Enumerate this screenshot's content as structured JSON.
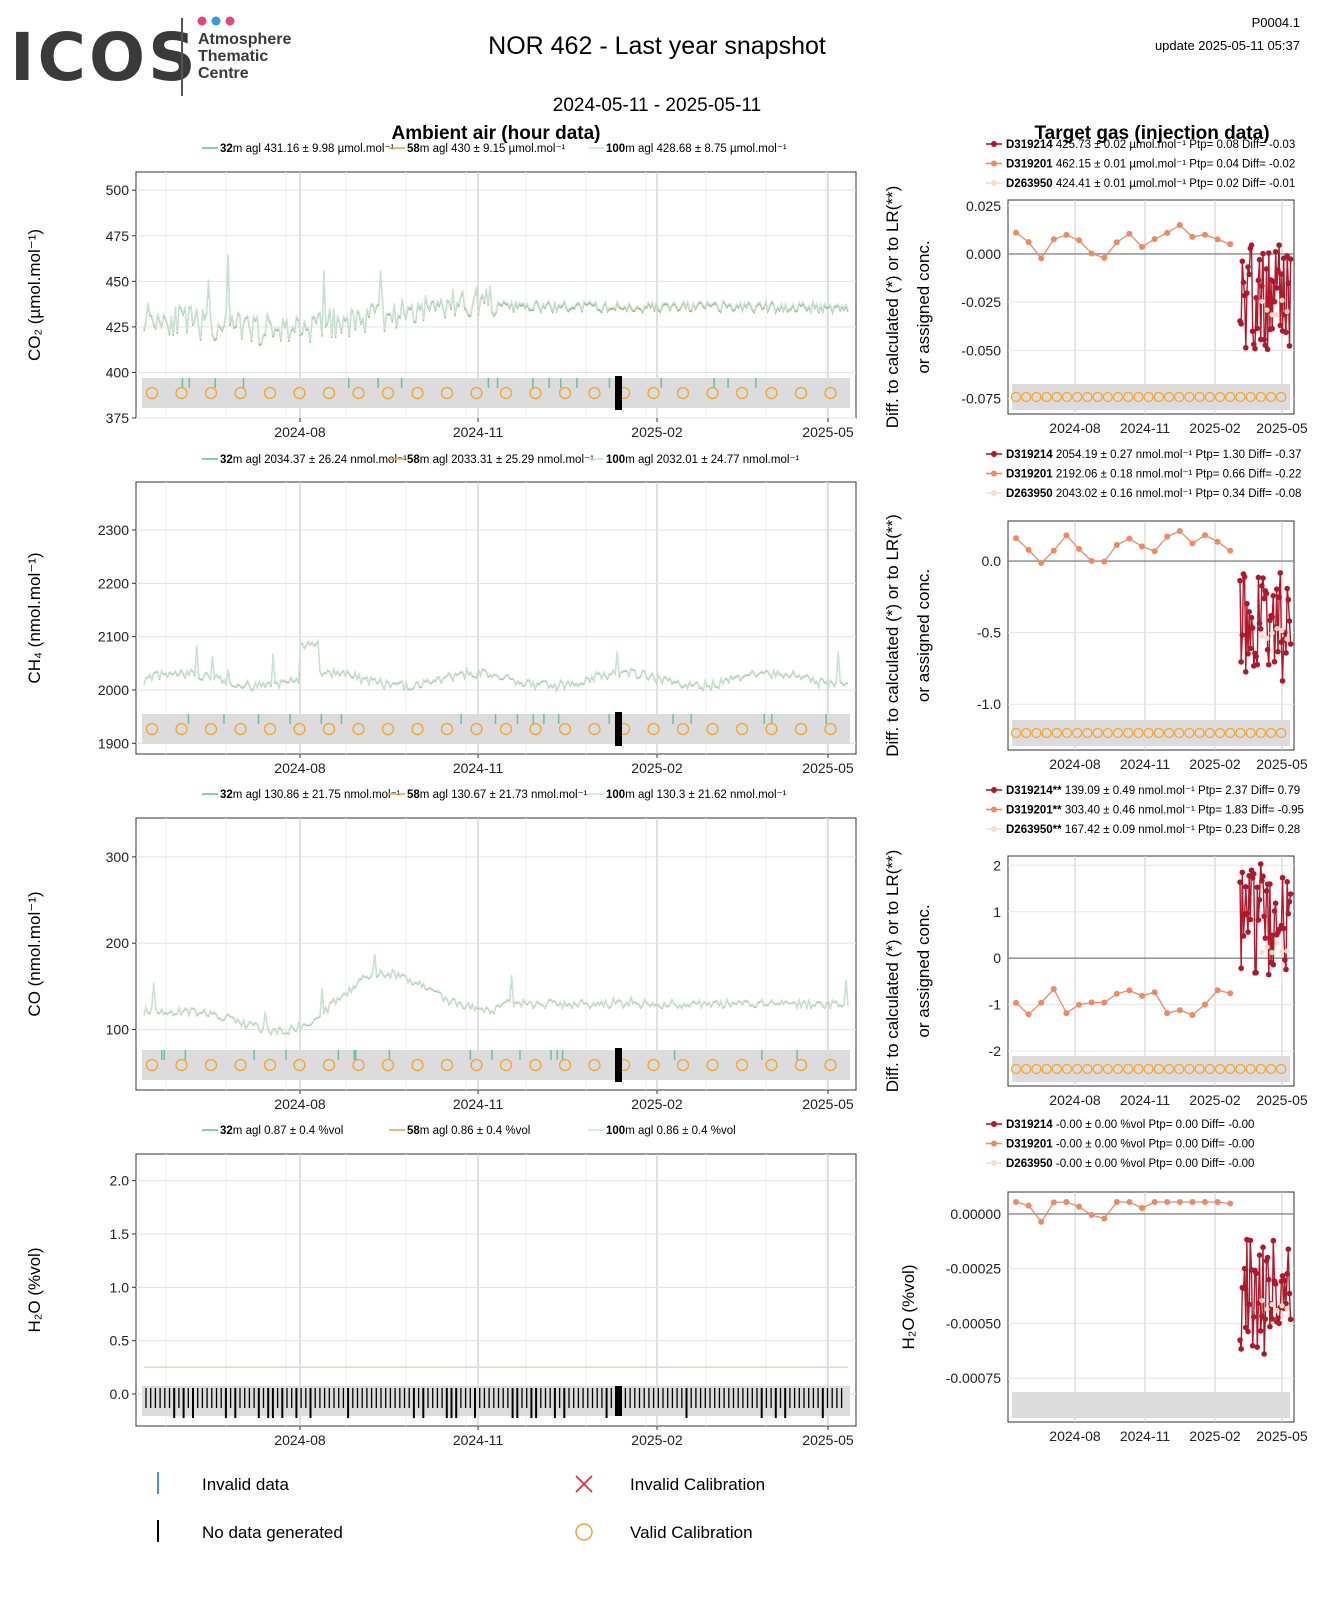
{
  "header": {
    "logo_main": "ICOS",
    "logo_sub": [
      "Atmosphere",
      "Thematic",
      "Centre"
    ],
    "title": "NOR 462 - Last year snapshot",
    "date_range": "2024-05-11 - 2025-05-11",
    "code": "P0004.1",
    "update": "update  2025-05-11 05:37"
  },
  "sections": {
    "left_title": "Ambient air (hour data)",
    "right_title": "Target gas (injection data)",
    "right_ylabel_line1": "Diff. to calculated (*) or to LR(**)",
    "right_ylabel_line2": "or assigned conc."
  },
  "colors": {
    "h32": "#66c2a5",
    "h58": "#e6ab4a",
    "h100": "#c5e8dd",
    "t1": "#b2182b",
    "t2": "#ef8a62",
    "t3": "#fddbc7",
    "valid_cal": "#f5a623",
    "invalid_data": "#4a90d9",
    "panel_bg": "#dcdcdc"
  },
  "legend_bottom": {
    "invalid_data": "Invalid data",
    "no_data": "No data generated",
    "invalid_cal": "Invalid Calibration",
    "valid_cal": "Valid Calibration"
  },
  "chart_data": [
    {
      "type": "line",
      "gas": "CO2",
      "ylabel": "CO₂ (µmol.mol⁻¹)",
      "yticks": [
        375,
        400,
        425,
        450,
        475,
        500
      ],
      "ylim": [
        375,
        510
      ],
      "xticks": [
        "2024-08",
        "2024-11",
        "2025-02",
        "2025-05"
      ],
      "legend": [
        {
          "height": "32",
          "text": "m agl 431.16 ± 9.98 µmol.mol⁻¹"
        },
        {
          "height": "58",
          "text": "m agl 430 ± 9.15 µmol.mol⁻¹"
        },
        {
          "height": "100",
          "text": "m agl 428.68 ± 8.75 µmol.mol⁻¹"
        }
      ],
      "target": {
        "yticks": [
          "0.025",
          "0.000",
          "-0.025",
          "-0.050",
          "-0.075"
        ],
        "ytick_values": [
          0.025,
          0,
          -0.025,
          -0.05,
          -0.075
        ],
        "ylim": [
          -0.083,
          0.028
        ],
        "xticks": [
          "2024-08",
          "2024-11",
          "2025-02",
          "2025-05"
        ],
        "legend": [
          {
            "id": "D319214",
            "text": " 425.73 ± 0.02 µmol.mol⁻¹ Ptp= 0.08 Diff= -0.03"
          },
          {
            "id": "D319201",
            "text": " 462.15 ± 0.01 µmol.mol⁻¹ Ptp= 0.04 Diff= -0.02"
          },
          {
            "id": "D263950",
            "text": " 424.41 ± 0.01 µmol.mol⁻¹ Ptp= 0.02 Diff= -0.01"
          }
        ]
      }
    },
    {
      "type": "line",
      "gas": "CH4",
      "ylabel": "CH₄ (nmol.mol⁻¹)",
      "yticks": [
        1900,
        2000,
        2100,
        2200,
        2300
      ],
      "ylim": [
        1880,
        2390
      ],
      "xticks": [
        "2024-08",
        "2024-11",
        "2025-02",
        "2025-05"
      ],
      "legend": [
        {
          "height": "32",
          "text": "m agl 2034.37 ± 26.24 nmol.mol⁻¹"
        },
        {
          "height": "58",
          "text": "m agl 2033.31 ± 25.29 nmol.mol⁻¹"
        },
        {
          "height": "100",
          "text": "m agl 2032.01 ± 24.77 nmol.mol⁻¹"
        }
      ],
      "target": {
        "yticks": [
          "0.0",
          "-0.5",
          "-1.0"
        ],
        "ytick_values": [
          0,
          -0.5,
          -1.0
        ],
        "ylim": [
          -1.32,
          0.28
        ],
        "xticks": [
          "2024-08",
          "2024-11",
          "2025-02",
          "2025-05"
        ],
        "legend": [
          {
            "id": "D319214",
            "text": " 2054.19 ± 0.27 nmol.mol⁻¹ Ptp= 1.30 Diff= -0.37"
          },
          {
            "id": "D319201",
            "text": " 2192.06 ± 0.18 nmol.mol⁻¹ Ptp= 0.66 Diff= -0.22"
          },
          {
            "id": "D263950",
            "text": " 2043.02 ± 0.16 nmol.mol⁻¹ Ptp= 0.34 Diff= -0.08"
          }
        ]
      }
    },
    {
      "type": "line",
      "gas": "CO",
      "ylabel": "CO (nmol.mol⁻¹)",
      "yticks": [
        100,
        200,
        300
      ],
      "ylim": [
        30,
        345
      ],
      "xticks": [
        "2024-08",
        "2024-11",
        "2025-02",
        "2025-05"
      ],
      "legend": [
        {
          "height": "32",
          "text": "m agl 130.86 ± 21.75 nmol.mol⁻¹"
        },
        {
          "height": "58",
          "text": "m agl 130.67 ± 21.73 nmol.mol⁻¹"
        },
        {
          "height": "100",
          "text": "m agl 130.3 ± 21.62 nmol.mol⁻¹"
        }
      ],
      "target": {
        "yticks": [
          "2",
          "1",
          "0",
          "-1",
          "-2"
        ],
        "ytick_values": [
          2,
          1,
          0,
          -1,
          -2
        ],
        "ylim": [
          -2.75,
          2.2
        ],
        "xticks": [
          "2024-08",
          "2024-11",
          "2025-02",
          "2025-05"
        ],
        "legend": [
          {
            "id": "D319214**",
            "text": " 139.09 ± 0.49 nmol.mol⁻¹ Ptp= 2.37 Diff= 0.79"
          },
          {
            "id": "D319201**",
            "text": " 303.40 ± 0.46 nmol.mol⁻¹ Ptp= 1.83 Diff= -0.95"
          },
          {
            "id": "D263950**",
            "text": " 167.42 ± 0.09 nmol.mol⁻¹ Ptp= 0.23 Diff= 0.28"
          }
        ]
      }
    },
    {
      "type": "line",
      "gas": "H2O",
      "ylabel": "H₂O (%vol)",
      "yticks": [
        0.0,
        0.5,
        1.0,
        1.5,
        2.0
      ],
      "ytick_labels": [
        "0.0",
        "0.5",
        "1.0",
        "1.5",
        "2.0"
      ],
      "ylim": [
        -0.3,
        2.25
      ],
      "xticks": [
        "2024-08",
        "2024-11",
        "2025-02",
        "2025-05"
      ],
      "legend": [
        {
          "height": "32",
          "text": "m agl 0.87 ± 0.4 %vol"
        },
        {
          "height": "58",
          "text": "m agl 0.86 ± 0.4 %vol"
        },
        {
          "height": "100",
          "text": "m agl 0.86 ± 0.4 %vol"
        }
      ],
      "target": {
        "ylabel": "H₂O (%vol)",
        "yticks": [
          "0.00000",
          "-0.00025",
          "-0.00050",
          "-0.00075"
        ],
        "ytick_values": [
          0,
          -0.00025,
          -0.0005,
          -0.00075
        ],
        "ylim": [
          -0.00095,
          0.0001
        ],
        "xticks": [
          "2024-08",
          "2024-11",
          "2025-02",
          "2025-05"
        ],
        "legend": [
          {
            "id": "D319214",
            "text": " -0.00 ± 0.00 %vol Ptp= 0.00 Diff= -0.00"
          },
          {
            "id": "D319201",
            "text": " -0.00 ± 0.00 %vol Ptp= 0.00 Diff= -0.00"
          },
          {
            "id": "D263950",
            "text": " -0.00 ± 0.00 %vol Ptp= 0.00 Diff= -0.00"
          }
        ]
      }
    }
  ]
}
